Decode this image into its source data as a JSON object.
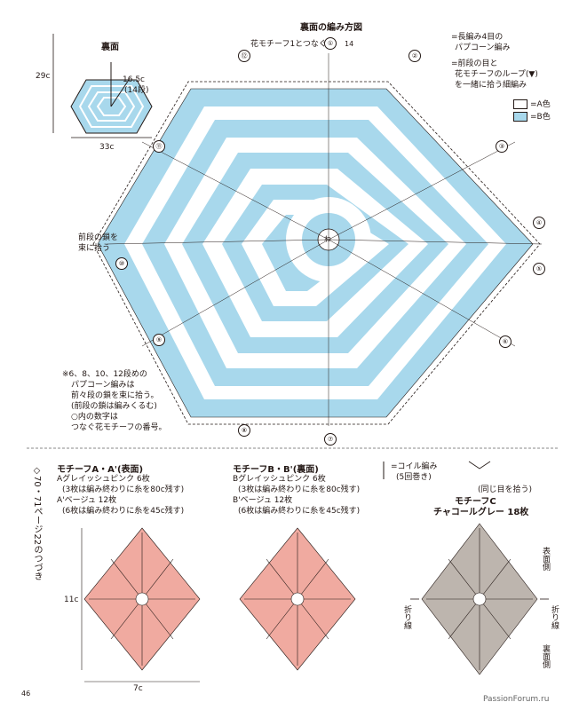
{
  "hexagon_mini": {
    "label": "裏面",
    "radius_label": "16.5c",
    "rows_label": "(14段)",
    "height_label": "29c",
    "width_label": "33c"
  },
  "diagram": {
    "title": "裏面の編み方図",
    "join_label": "花モチーフ1とつなぐ",
    "row_marker": "14",
    "left_note_line1": "前段の鎖を",
    "left_note_line2": "束に拾う",
    "center_symbol": "わ",
    "motif_numbers": [
      "①",
      "②",
      "③",
      "④",
      "⑤",
      "⑥",
      "⑦",
      "⑧",
      "⑨",
      "⑩",
      "⑪",
      "⑫"
    ]
  },
  "legend": {
    "popcorn_line1": "=長編み4目の",
    "popcorn_line2": "パプコーン編み",
    "join_line1": "=前段の目と",
    "join_line2": "花モチーフのループ(▼)",
    "join_line3": "を一緒に拾う細編み",
    "color_a": "=A色",
    "color_b": "=B色",
    "color_a_hex": "#ffffff",
    "color_b_hex": "#a8d8ec"
  },
  "note": {
    "line1": "※6、8、10、12段めの",
    "line2": "パプコーン編みは",
    "line3": "前々段の鎖を束に拾う。",
    "line4": "(前段の鎖は編みくるむ)",
    "line5": "○内の数字は",
    "line6": "つなぐ花モチーフの番号。"
  },
  "side_caption": {
    "text": "◇70・71ページ22のつづき"
  },
  "motif_a": {
    "title": "モチーフA・A'(表面)",
    "line1": "Aグレイッシュピンク 6枚",
    "line2": "(3枚は編み終わりに糸を80c残す)",
    "line3": "A'ベージュ 12枚",
    "line4": "(6枚は編み終わりに糸を45c残す)",
    "height_label": "11c",
    "width_label": "7c",
    "color_hex": "#f0aaa0"
  },
  "motif_b": {
    "title": "モチーフB・B'(裏面)",
    "line1": "Bグレイッシュピンク 6枚",
    "line2": "(3枚は編み終わりに糸を80c残す)",
    "line3": "B'ベージュ 12枚",
    "line4": "(6枚は編み終わりに糸を45c残す)",
    "color_hex": "#f0aaa0"
  },
  "coil": {
    "label": "=コイル編み",
    "sub": "(5回巻き)"
  },
  "same_stitch": {
    "label": "(同じ目を拾う)"
  },
  "motif_c": {
    "title": "モチーフC",
    "subtitle": "チャコールグレー 18枚",
    "front": "表面側",
    "back": "裏面側",
    "fold_left": "折り線",
    "fold_right": "折り線",
    "color_hex": "#bdb5ae"
  },
  "page_number": "46",
  "watermark": "PassionForum.ru"
}
